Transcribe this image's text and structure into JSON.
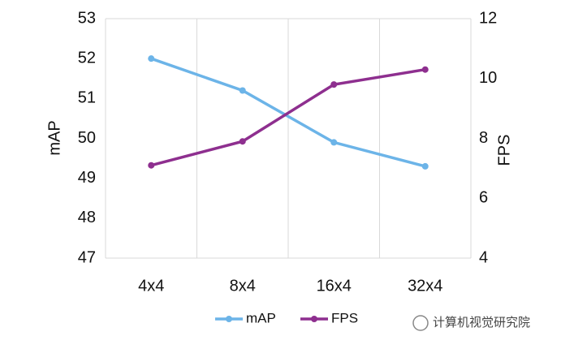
{
  "chart_data": {
    "type": "line",
    "categories": [
      "4x4",
      "8x4",
      "16x4",
      "32x4"
    ],
    "series": [
      {
        "name": "mAP",
        "color": "#6cb4e8",
        "values": [
          52.0,
          51.2,
          49.9,
          49.3
        ]
      },
      {
        "name": "FPS",
        "color": "#8e2f8f",
        "values": [
          7.1,
          7.9,
          9.8,
          10.3
        ],
        "axis": "y2"
      }
    ],
    "ylabel": "mAP",
    "y2label": "FPS",
    "ylim": [
      47,
      53
    ],
    "yticks": [
      47,
      48,
      49,
      50,
      51,
      52,
      53
    ],
    "y2lim": [
      4,
      12
    ],
    "y2ticks": [
      4,
      6,
      8,
      10,
      12
    ],
    "grid": true,
    "legend": "bottom"
  },
  "watermark": "计算机视觉研究院"
}
